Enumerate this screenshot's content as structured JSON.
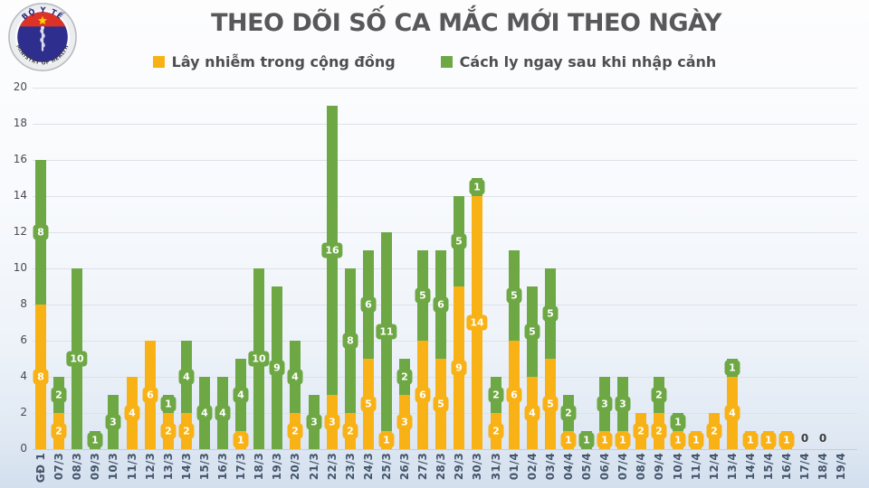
{
  "header": {
    "title": "THEO DÕI SỐ CA MẮC MỚI THEO NGÀY",
    "logo": {
      "top_text": "BỘ Y TẾ",
      "bottom_text": "MINISTRY OF HEALTH"
    }
  },
  "legend": {
    "items": [
      {
        "label": "Lây nhiễm trong cộng đồng",
        "color": "#F9B215"
      },
      {
        "label": "Cách ly ngay sau khi nhập cảnh",
        "color": "#6EA844"
      }
    ]
  },
  "colors": {
    "community": "#F9B215",
    "quarantine": "#6EA844",
    "x_tick_text": "#44546a",
    "y_tick_text": "#4b4b52",
    "title_text": "#58585a"
  },
  "chart_data": {
    "type": "bar",
    "stacked": true,
    "title": "THEO DÕI SỐ CA MẮC MỚI THEO NGÀY",
    "xlabel": "",
    "ylabel": "",
    "ylim": [
      0,
      20
    ],
    "ytick_step": 2,
    "grid": true,
    "legend_position": "top",
    "x_tick_rotation": -90,
    "value_labels": "badge-on-segment",
    "categories": [
      "GĐ 1",
      "07/3",
      "08/3",
      "09/3",
      "10/3",
      "11/3",
      "12/3",
      "13/3",
      "14/3",
      "15/3",
      "16/3",
      "17/3",
      "18/3",
      "19/3",
      "20/3",
      "21/3",
      "22/3",
      "23/3",
      "24/3",
      "25/3",
      "26/3",
      "27/3",
      "28/3",
      "29/3",
      "30/3",
      "31/3",
      "01/4",
      "02/4",
      "03/4",
      "04/4",
      "05/4",
      "06/4",
      "07/4",
      "08/4",
      "09/4",
      "10/4",
      "11/4",
      "12/4",
      "13/4",
      "14/4",
      "15/4",
      "16/4",
      "17/4",
      "18/4",
      "19/4"
    ],
    "series": [
      {
        "name": "Lây nhiễm trong cộng đồng",
        "color": "#F9B215",
        "values": [
          8,
          2,
          0,
          0,
          0,
          4,
          6,
          2,
          2,
          0,
          0,
          1,
          0,
          0,
          2,
          0,
          3,
          2,
          5,
          1,
          3,
          6,
          5,
          9,
          14,
          2,
          6,
          4,
          5,
          1,
          0,
          1,
          1,
          2,
          2,
          1,
          1,
          2,
          4,
          1,
          1,
          1,
          0,
          0,
          0
        ]
      },
      {
        "name": "Cách ly ngay sau khi nhập cảnh",
        "color": "#6EA844",
        "values": [
          8,
          2,
          10,
          1,
          3,
          0,
          0,
          1,
          4,
          4,
          4,
          4,
          10,
          9,
          4,
          3,
          16,
          8,
          6,
          11,
          2,
          5,
          6,
          5,
          1,
          2,
          5,
          5,
          5,
          2,
          1,
          3,
          3,
          0,
          2,
          1,
          0,
          0,
          1,
          0,
          0,
          0,
          0,
          0,
          0
        ]
      }
    ],
    "zero_label_categories": [
      "17/4",
      "18/4"
    ],
    "zero_label_text": "0"
  }
}
